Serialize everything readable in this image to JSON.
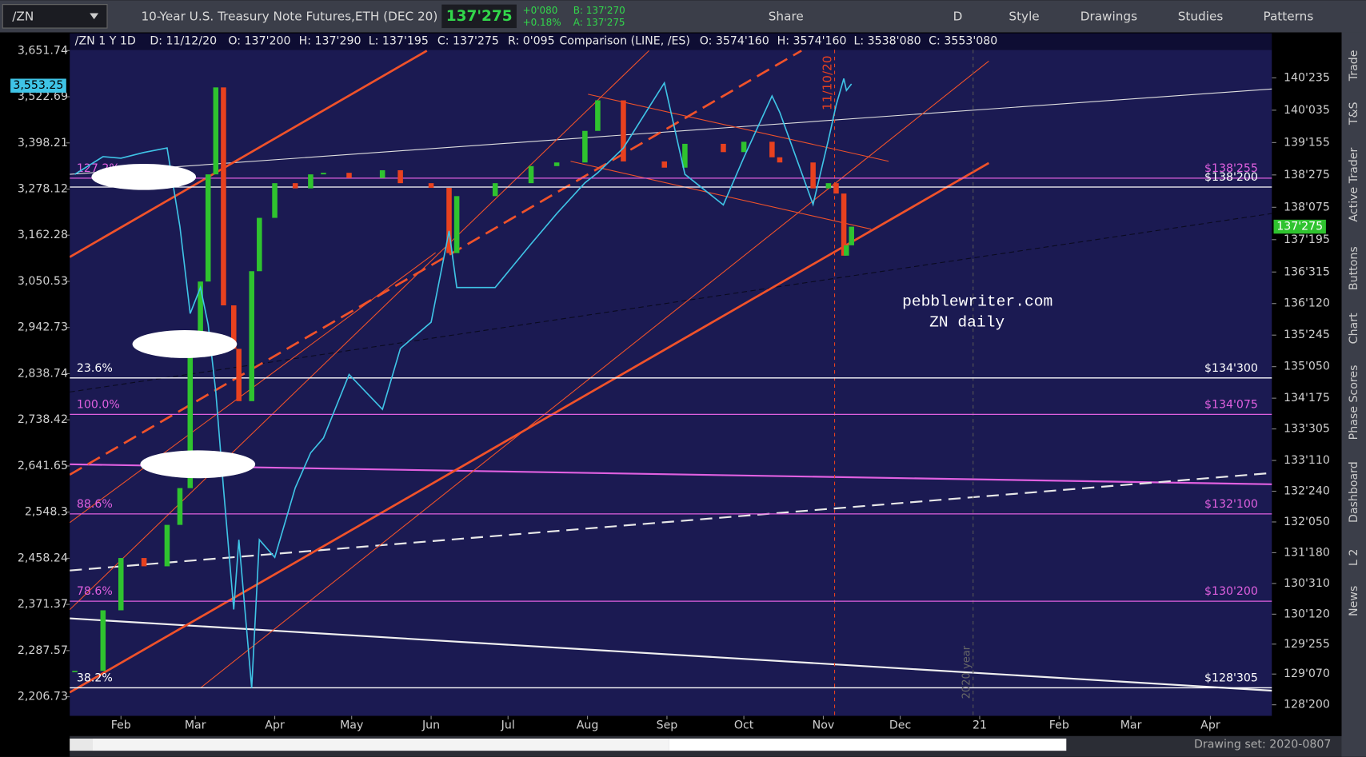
{
  "toolbar": {
    "symbol": "/ZN",
    "description": "10-Year U.S. Treasury Note Futures,ETH (DEC 20)",
    "last": "137'275",
    "change": "+0'080",
    "change_pct": "+0.18%",
    "bid": "B: 137'270",
    "ask": "A: 137'275",
    "buttons": [
      "Share",
      "D",
      "Style",
      "Drawings",
      "Studies",
      "Patterns"
    ]
  },
  "info_bar": [
    "/ZN 1 Y 1D",
    "D: 11/12/20",
    "O: 137'200",
    "H: 137'290",
    "L: 137'195",
    "C: 137'275",
    "R: 0'095",
    "Comparison (LINE, /ES)",
    "O: 3574'160",
    "H: 3574'160",
    "L: 3538'080",
    "C: 3553'080"
  ],
  "chart_data": {
    "type": "candlestick",
    "x": [
      "2020-01-14",
      "2020-01-25",
      "2020-02-01",
      "2020-02-10",
      "2020-02-19",
      "2020-02-24",
      "2020-02-28",
      "2020-03-03",
      "2020-03-06",
      "2020-03-09",
      "2020-03-12",
      "2020-03-16",
      "2020-03-18",
      "2020-03-23",
      "2020-03-26",
      "2020-04-01",
      "2020-04-09",
      "2020-04-15",
      "2020-04-20",
      "2020-04-30",
      "2020-05-13",
      "2020-05-20",
      "2020-06-01",
      "2020-06-08",
      "2020-06-11",
      "2020-06-26",
      "2020-07-10",
      "2020-07-20",
      "2020-07-31",
      "2020-08-05",
      "2020-08-15",
      "2020-08-31",
      "2020-09-08",
      "2020-09-23",
      "2020-10-01",
      "2020-10-12",
      "2020-10-15",
      "2020-10-28",
      "2020-11-03",
      "2020-11-06",
      "2020-11-09",
      "2020-11-10",
      "2020-11-12"
    ],
    "series": [
      {
        "color": "#e8411f",
        "up_color": "#2fc32f",
        "values": [
          129.28,
          130.45,
          131.46,
          131.3,
          132.1,
          132.81,
          135.51,
          136.8,
          138.87,
          140.55,
          136.34,
          135.5,
          134.49,
          137.0,
          138.03,
          138.7,
          138.6,
          138.87,
          138.9,
          138.8,
          138.95,
          138.7,
          138.61,
          137.35,
          138.45,
          138.7,
          139.03,
          139.1,
          139.71,
          140.3,
          139.12,
          139.0,
          139.46,
          139.3,
          139.5,
          139.2,
          139.1,
          138.6,
          138.7,
          138.5,
          137.3,
          137.5,
          137.86
        ]
      },
      {
        "color": "#3fc4e6",
        "axis": "y2",
        "values": [
          3316,
          3362,
          3358,
          3373,
          3385,
          3184,
          2975,
          3036,
          2950,
          2799,
          2597,
          2362,
          2494,
          2222,
          2494,
          2460,
          2597,
          2669,
          2700,
          2837,
          2761,
          2895,
          2955,
          3173,
          3036,
          3036,
          3141,
          3216,
          3294,
          3320,
          3385,
          3561,
          3316,
          3238,
          3360,
          3525,
          3480,
          3239,
          3407,
          3500,
          3573,
          3540,
          3558
        ]
      }
    ],
    "xlim": [
      "2020-01-12",
      "2021-04-25"
    ],
    "xticks": [
      {
        "value": "2020-02-01",
        "label": "Feb"
      },
      {
        "value": "2020-03-01",
        "label": "Mar"
      },
      {
        "value": "2020-04-01",
        "label": "Apr"
      },
      {
        "value": "2020-05-01",
        "label": "May"
      },
      {
        "value": "2020-06-01",
        "label": "Jun"
      },
      {
        "value": "2020-07-01",
        "label": "Jul"
      },
      {
        "value": "2020-08-01",
        "label": "Aug"
      },
      {
        "value": "2020-09-01",
        "label": "Sep"
      },
      {
        "value": "2020-10-01",
        "label": "Oct"
      },
      {
        "value": "2020-11-01",
        "label": "Nov"
      },
      {
        "value": "2020-12-01",
        "label": "Dec"
      },
      {
        "value": "2021-01-01",
        "label": "21"
      },
      {
        "value": "2021-02-01",
        "label": "Feb"
      },
      {
        "value": "2021-03-01",
        "label": "Mar"
      },
      {
        "value": "2021-04-01",
        "label": "Apr"
      }
    ],
    "ylim": [
      128.41,
      141.31
    ],
    "yticks": [
      {
        "value": 140.734375,
        "label": "140'235"
      },
      {
        "value": 140.109375,
        "label": "140'035"
      },
      {
        "value": 139.484375,
        "label": "139'155"
      },
      {
        "value": 138.859375,
        "label": "138'275"
      },
      {
        "value": 138.234375,
        "label": "138'075"
      },
      {
        "value": 137.609375,
        "label": "137'195"
      },
      {
        "value": 136.984375,
        "label": "136'315"
      },
      {
        "value": 136.375,
        "label": "136'120"
      },
      {
        "value": 135.765625,
        "label": "135'245"
      },
      {
        "value": 135.15625,
        "label": "135'050"
      },
      {
        "value": 134.546875,
        "label": "134'175"
      },
      {
        "value": 133.953125,
        "label": "133'305"
      },
      {
        "value": 133.34375,
        "label": "133'110"
      },
      {
        "value": 132.75,
        "label": "132'240"
      },
      {
        "value": 132.15625,
        "label": "132'050"
      },
      {
        "value": 131.5625,
        "label": "131'180"
      },
      {
        "value": 130.96875,
        "label": "130'310"
      },
      {
        "value": 130.375,
        "label": "130'120"
      },
      {
        "value": 129.796875,
        "label": "129'255"
      },
      {
        "value": 129.21875,
        "label": "129'070"
      },
      {
        "value": 128.625,
        "label": "128'200"
      }
    ],
    "y2lim": [
      2174,
      3659
    ],
    "y2_log": true,
    "y2ticks": [
      {
        "value": 3651.74,
        "label": "3,651.74"
      },
      {
        "value": 3522.69,
        "label": "3,522.69"
      },
      {
        "value": 3398.21,
        "label": "3,398.21"
      },
      {
        "value": 3278.12,
        "label": "3,278.12"
      },
      {
        "value": 3162.28,
        "label": "3,162.28"
      },
      {
        "value": 3050.53,
        "label": "3,050.53"
      },
      {
        "value": 2942.73,
        "label": "2,942.73"
      },
      {
        "value": 2838.74,
        "label": "2,838.74"
      },
      {
        "value": 2738.42,
        "label": "2,738.42"
      },
      {
        "value": 2641.65,
        "label": "2,641.65"
      },
      {
        "value": 2548.3,
        "label": "2,548.3"
      },
      {
        "value": 2458.24,
        "label": "2,458.24"
      },
      {
        "value": 2371.37,
        "label": "2,371.37"
      },
      {
        "value": 2287.57,
        "label": "2,287.57"
      },
      {
        "value": 2206.73,
        "label": "2,206.73"
      }
    ],
    "y2_last": {
      "value": 3553.25,
      "label": "3,553.25"
    },
    "levels": [
      {
        "value": 138.796875,
        "left_label": "127.2%",
        "right_label": "$138'255",
        "color": "#e060e0"
      },
      {
        "value": 138.625,
        "right_label": "$138'200",
        "color": "#ffffff"
      },
      {
        "value": 134.9375,
        "left_label": "23.6%",
        "right_label": "$134'300",
        "color": "#ffffff"
      },
      {
        "value": 134.234375,
        "left_label": "100.0%",
        "right_label": "$134'075",
        "color": "#e060e0"
      },
      {
        "value": 132.3125,
        "left_label": "88.6%",
        "right_label": "$132'100",
        "color": "#e060e0"
      },
      {
        "value": 130.625,
        "left_label": "78.6%",
        "right_label": "$130'200",
        "color": "#e060e0"
      },
      {
        "value": 128.953125,
        "left_label": "38.2%",
        "right_label": "$128'305",
        "color": "#ffffff"
      }
    ],
    "annotations": {
      "site": "pebblewriter.com",
      "subtitle": "ZN daily",
      "event_date": "11/10/20",
      "year_marker": "2020 year"
    }
  },
  "side_tabs": [
    "Trade",
    "T&S",
    "Active Trader",
    "Buttons",
    "Chart",
    "Phase Scores",
    "Dashboard",
    "L 2",
    "News"
  ],
  "status_bar": {
    "drawing_set": "Drawing set: 2020-0807"
  }
}
